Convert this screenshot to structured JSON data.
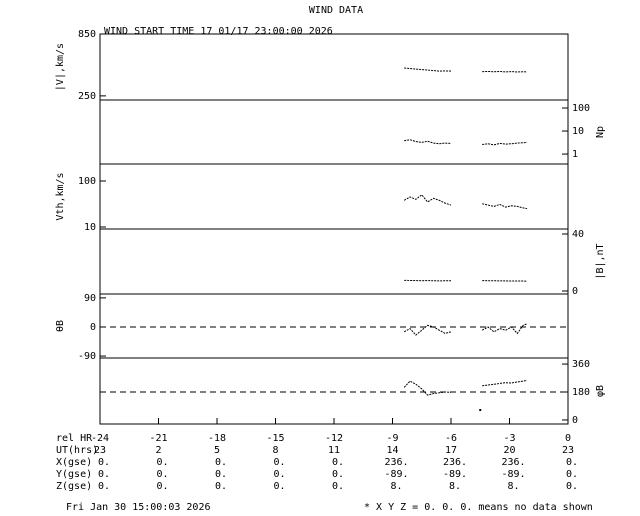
{
  "chart_data": {
    "type": "line",
    "title": "WIND DATA",
    "subtitle": "WIND START TIME  17 01/17 23:00:00 2026",
    "xlim": [
      -24,
      0
    ],
    "xticks": [
      -24,
      -21,
      -18,
      -15,
      -12,
      -9,
      -6,
      -3,
      0
    ],
    "panels": [
      {
        "label": "|V|,km/s",
        "axis_side": "left",
        "log": false,
        "ylim": [
          210,
          850
        ],
        "yticks": [
          850,
          250
        ],
        "x": [
          -8.4,
          -8.1,
          -7.8,
          -7.5,
          -7.2,
          -6.9,
          -6.6,
          -6.3,
          -6.0,
          -5.0,
          -4.4,
          -4.1,
          -3.8,
          -3.5,
          -3.2,
          -2.9,
          -2.6,
          -2.3,
          -2.1
        ],
        "values": [
          520,
          515,
          510,
          505,
          500,
          495,
          490,
          492,
          490,
          null,
          485,
          487,
          484,
          486,
          483,
          485,
          482,
          484,
          483
        ]
      },
      {
        "label": "Np",
        "axis_side": "right",
        "log": true,
        "ylim": [
          0.37,
          223
        ],
        "yticks": [
          100,
          10,
          1
        ],
        "x": [
          -8.4,
          -8.1,
          -7.8,
          -7.5,
          -7.2,
          -6.9,
          -6.6,
          -6.3,
          -6.0,
          -5.0,
          -4.4,
          -4.1,
          -3.8,
          -3.5,
          -3.2,
          -2.9,
          -2.6,
          -2.3,
          -2.1
        ],
        "values": [
          3.8,
          4.2,
          3.5,
          3.2,
          3.6,
          3.0,
          2.8,
          3.0,
          2.9,
          null,
          2.6,
          2.8,
          2.5,
          2.9,
          2.7,
          2.8,
          3.0,
          3.1,
          3.2
        ]
      },
      {
        "label": "Vth,km/s",
        "axis_side": "left",
        "log": true,
        "ylim": [
          9.05,
          234
        ],
        "yticks": [
          100,
          10
        ],
        "x": [
          -8.4,
          -8.1,
          -7.8,
          -7.5,
          -7.2,
          -6.9,
          -6.6,
          -6.3,
          -6.0,
          -5.0,
          -4.4,
          -4.1,
          -3.8,
          -3.5,
          -3.2,
          -2.9,
          -2.6,
          -2.3,
          -2.1
        ],
        "values": [
          38,
          45,
          40,
          50,
          35,
          42,
          38,
          33,
          30,
          null,
          32,
          30,
          28,
          31,
          27,
          29,
          28,
          26,
          25
        ]
      },
      {
        "label": "|B|,nT",
        "axis_side": "right",
        "log": false,
        "ylim": [
          -2.1,
          43.5
        ],
        "yticks": [
          40,
          0
        ],
        "x": [
          -8.4,
          -8.1,
          -7.8,
          -7.5,
          -7.2,
          -6.9,
          -6.6,
          -6.3,
          -6.0,
          -5.0,
          -4.4,
          -4.1,
          -3.8,
          -3.5,
          -3.2,
          -2.9,
          -2.6,
          -2.3,
          -2.1
        ],
        "values": [
          7.5,
          7.4,
          7.3,
          7.2,
          7.3,
          7.2,
          7.1,
          7.2,
          7.2,
          null,
          7.3,
          7.2,
          7.2,
          7.1,
          7.1,
          7.0,
          7.0,
          7.0,
          6.9
        ]
      },
      {
        "label": "θB",
        "axis_side": "left",
        "log": false,
        "ylim": [
          -96,
          102
        ],
        "yticks": [
          90,
          0,
          -90
        ],
        "dashed_line": 0,
        "x": [
          -8.4,
          -8.1,
          -7.8,
          -7.5,
          -7.2,
          -6.9,
          -6.6,
          -6.3,
          -6.0,
          -5.0,
          -4.4,
          -4.1,
          -3.8,
          -3.5,
          -3.2,
          -2.9,
          -2.6,
          -2.3,
          -2.1
        ],
        "values": [
          -15,
          -5,
          -25,
          -10,
          5,
          0,
          -10,
          -20,
          -15,
          null,
          -10,
          0,
          -15,
          -5,
          -10,
          0,
          -20,
          5,
          10
        ]
      },
      {
        "label": "φB",
        "axis_side": "right",
        "log": false,
        "ylim": [
          -26,
          399
        ],
        "yticks": [
          360,
          180,
          0
        ],
        "dashed_line": 180,
        "x": [
          -8.4,
          -8.1,
          -7.8,
          -7.5,
          -7.2,
          -6.9,
          -6.6,
          -6.3,
          -6.0,
          -5.0,
          -4.5,
          -4.45,
          -4.4,
          -4.1,
          -3.8,
          -3.5,
          -3.2,
          -2.9,
          -2.6,
          -2.3,
          -2.1
        ],
        "values": [
          210,
          250,
          230,
          200,
          160,
          170,
          175,
          180,
          178,
          null,
          64,
          null,
          220,
          225,
          230,
          235,
          240,
          238,
          245,
          250,
          255
        ]
      }
    ],
    "table": {
      "header": "rel HR",
      "rows": [
        {
          "label": "UT(hrs)",
          "values": [
            "23",
            "2",
            "5",
            "8",
            "11",
            "14",
            "17",
            "20",
            "23"
          ]
        },
        {
          "label": "X(gse)",
          "values": [
            "0.",
            "0.",
            "0.",
            "0.",
            "0.",
            "236.",
            "236.",
            "236.",
            "0."
          ]
        },
        {
          "label": "Y(gse)",
          "values": [
            "0.",
            "0.",
            "0.",
            "0.",
            "0.",
            "-89.",
            "-89.",
            "-89.",
            "0."
          ]
        },
        {
          "label": "Z(gse)",
          "values": [
            "0.",
            "0.",
            "0.",
            "0.",
            "0.",
            "8.",
            "8.",
            "8.",
            "0."
          ]
        }
      ]
    },
    "footer_left": "Fri Jan 30 15:00:03 2026",
    "footer_right": "* X Y Z = 0. 0. 0. means no data shown"
  }
}
